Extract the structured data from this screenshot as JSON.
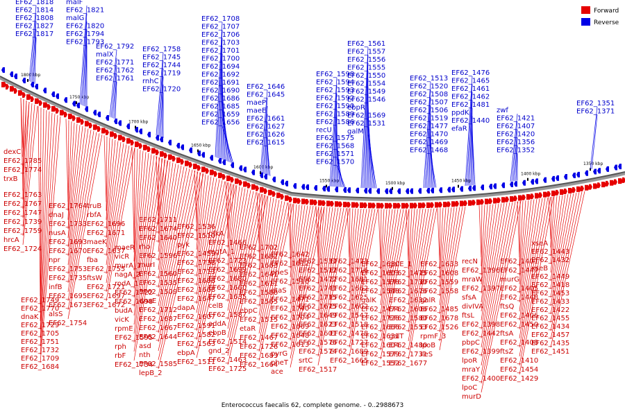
{
  "title": "Enterococcus faecalis 62, complete genome. - 0..2988673",
  "legend": [
    {
      "label": "Forward",
      "color": "#e60000"
    },
    {
      "label": "Reverse",
      "color": "#0000e6"
    }
  ],
  "ticks": [
    "1800 kbp",
    "1750 kbp",
    "1700 kbp",
    "1650 kbp",
    "1600 kbp",
    "1550 kbp",
    "1500 kbp",
    "1450 kbp",
    "1400 kbp",
    "1350 kbp"
  ],
  "reverse_labels": [
    "EF62_1818",
    "EF62_1814",
    "EF62_1808",
    "EF62_1827",
    "EF62_1817",
    "malF",
    "EF62_1821",
    "malG",
    "EF62_1820",
    "EF62_1794",
    "EF62_1793",
    "EF62_1792",
    "malX",
    "EF62_1771",
    "EF62_1762",
    "EF62_1761",
    "EF62_1758",
    "EF62_1745",
    "EF62_1744",
    "EF62_1719",
    "rnhC",
    "EF62_1720",
    "EF62_1708",
    "EF62_1707",
    "EF62_1706",
    "EF62_1703",
    "EF62_1701",
    "EF62_1700",
    "EF62_1694",
    "EF62_1692",
    "EF62_1691",
    "EF62_1690",
    "EF62_1686",
    "EF62_1685",
    "EF62_1659",
    "EF62_1656",
    "EF62_1646",
    "EF62_1645",
    "maeP",
    "maeE",
    "EF62_1661",
    "EF62_1627",
    "EF62_1626",
    "EF62_1615",
    "EF62_1598",
    "EF62_1594",
    "EF62_1593",
    "EF62_1592",
    "EF62_1590",
    "EF62_1589",
    "EF62_1586",
    "recU",
    "EF62_1575",
    "EF62_1568",
    "EF62_1571",
    "EF62_1570",
    "EF62_1561",
    "EF62_1557",
    "EF62_1556",
    "EF62_1555",
    "EF62_1550",
    "EF62_1554",
    "EF62_1549",
    "EF62_1546",
    "ebpR",
    "EF62_1569",
    "EF62_1531",
    "galM",
    "EF62_1513",
    "EF62_1520",
    "EF62_1508",
    "EF62_1507",
    "EF62_1506",
    "EF62_1519",
    "EF62_1477",
    "EF62_1470",
    "EF62_1469",
    "EF62_1468",
    "EF62_1476",
    "EF62_1465",
    "EF62_1461",
    "EF62_1462",
    "EF62_1481",
    "ppdK",
    "EF62_1440",
    "efaR",
    "zwf",
    "EF62_1421",
    "EF62_1407",
    "EF62_1420",
    "EF62_1356",
    "EF62_1352",
    "EF62_1351",
    "EF62_1371"
  ],
  "forward_labels": [
    "dexC",
    "EF62_1785",
    "EF62_1774",
    "trxB",
    "EF62_1763",
    "EF62_1767",
    "EF62_1747",
    "EF62_1739",
    "EF62_1759",
    "hrcA",
    "EF62_1724",
    "EF62_1749",
    "EF62_1770",
    "dnaK",
    "EF62_1729",
    "EF62_1705",
    "EF62_1751",
    "EF62_1732",
    "EF62_1709",
    "EF62_1684",
    "EF62_1764",
    "dnaJ",
    "EF62_1733",
    "nusA",
    "EF62_1693",
    "EF62_1670",
    "npr",
    "EF62_1753",
    "EF62_1735",
    "infB",
    "EF62_1695",
    "EF62_1673",
    "alsS",
    "EF62_1754",
    "truB",
    "rbfA",
    "EF62_1696",
    "EF62_1671",
    "maeK",
    "EF62_1637",
    "fba",
    "EF62_1755",
    "ftsW",
    "EF62_1721",
    "EF62_1697",
    "EF62_1672",
    "maeR",
    "vicR",
    "murA_1",
    "nagA_2",
    "rodA_1",
    "EF62_1722",
    "EF62_1698",
    "budA",
    "vicK",
    "rpmE",
    "EF62_1595",
    "rph",
    "rbF",
    "EF62_1734",
    "EF62_1711",
    "EF62_1674",
    "EF62_1640",
    "rho",
    "EF62_1596",
    "murI",
    "EF62_1560",
    "EF62_1535",
    "EF62_1509",
    "dnaE",
    "EF62_1712",
    "EF62_1687",
    "EF62_1667",
    "EF62_1644",
    "asd",
    "nth",
    "EF62_1585",
    "lepB_2",
    "EF62_1536",
    "EF62_1510",
    "pyk",
    "EF62_1459",
    "EF62_1738",
    "EF62_1713",
    "EF62_1688",
    "EF62_1668",
    "EF62_1647",
    "dapA",
    "EF62_1607",
    "EF62_1591",
    "EF62_1582",
    "EF62_1563",
    "ebpA",
    "EF62_1511",
    "pfkA",
    "EF62_1466",
    "mgtA_1",
    "EF62_1723",
    "EF62_1699",
    "EF62_1680",
    "EF62_1660",
    "EF62_1635",
    "celB",
    "EF62_1587",
    "addA",
    "ebpB",
    "EF62_1514",
    "gnd_2",
    "EF62_1463",
    "EF62_1725",
    "EF62_1702",
    "EF62_1682",
    "EF62_1663",
    "EF62_1641",
    "EF62_1611",
    "EF62_1588",
    "EF62_1565",
    "ebpC",
    "EF62_1515",
    "etaR",
    "EF62_1467",
    "EF62_1726",
    "EF62_1683",
    "EF62_1664",
    "EF62_1642",
    "EF62_1612",
    "pheS",
    "EF62_1516",
    "etaS",
    "EF62_1471",
    "EF62_1740",
    "EF62_1704",
    "EF62_1669",
    "EF62_1648",
    "EF62_1613",
    "pyrG",
    "pheT",
    "ace",
    "EF62_1537",
    "EF62_1512",
    "EF62_1472",
    "EF62_1741",
    "EF62_1715",
    "EF62_1675",
    "EF62_1649",
    "EF62_1623",
    "EF62_1601",
    "EF62_1576",
    "EF62_1574",
    "srtC",
    "EF62_1517",
    "EF62_1473",
    "EF62_1716",
    "EF62_1681",
    "EF62_1662",
    "EF62_1625",
    "EF62_1602",
    "EF62_1547",
    "EF62_1518",
    "EF62_1478",
    "EF62_1727",
    "EF62_1689",
    "EF62_1665",
    "EF62_1630",
    "EF62_1603",
    "EF62_1578",
    "EF62_1548",
    "galK",
    "EF62_1474",
    "EF62_1728",
    "EF62_1666",
    "EF62_1631",
    "EF62_1604",
    "EF62_1579",
    "EF62_1552",
    "galE_1",
    "EF62_1475",
    "EF62_1730",
    "EF62_1676",
    "EF62_1632",
    "EF62_1606",
    "EF62_1580",
    "EF62_1553",
    "galT",
    "EF62_1480",
    "EF62_1731",
    "EF62_1677",
    "EF62_1633",
    "EF62_1608",
    "EF62_1559",
    "EF62_1558",
    "galR",
    "EF62_1485",
    "EF62_1678",
    "EF62_1526",
    "rpmF_3",
    "lpoB",
    "ileS",
    "recN",
    "EF62_1396",
    "mraW",
    "EF62_1397",
    "sfsA",
    "divIVA",
    "ftsL",
    "EF62_1398",
    "EF62_1442",
    "pbpC",
    "EF62_1399",
    "lpoR",
    "mraY",
    "EF62_1400",
    "lpoC",
    "murD",
    "EF62_1401",
    "EF62_1447",
    "murG",
    "EF62_1405",
    "EF62_1448",
    "ftsQ",
    "EF62_1406",
    "EF62_1450",
    "ftsA",
    "EF62_1408",
    "ftsZ",
    "EF62_1410",
    "EF62_1454",
    "EF62_1429",
    "xseA",
    "EF62_1443",
    "EF62_1432",
    "xseB",
    "EF62_1449",
    "EF62_1418",
    "EF62_1453",
    "EF62_1433",
    "EF62_1422",
    "EF62_1455",
    "EF62_1434",
    "EF62_1457",
    "EF62_1435",
    "EF62_1451"
  ]
}
